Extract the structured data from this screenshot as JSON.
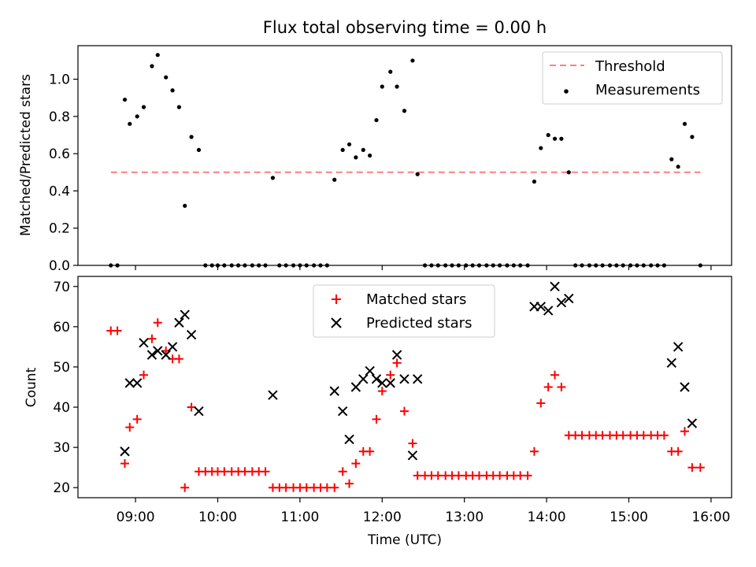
{
  "figure": {
    "title": "Flux total observing time = 0.00 h",
    "xlabel": "Time (UTC)",
    "x_tick_labels": [
      "09:00",
      "10:00",
      "11:00",
      "12:00",
      "13:00",
      "14:00",
      "15:00",
      "16:00"
    ]
  },
  "chart_data": [
    {
      "type": "scatter",
      "ylabel": "Matched/Predicted stars",
      "x_unit": "hours UTC",
      "xlim": [
        8.3,
        16.25
      ],
      "ylim": [
        0,
        1.18
      ],
      "y_ticks": [
        0.0,
        0.2,
        0.4,
        0.6,
        0.8,
        1.0
      ],
      "y_tick_labels": [
        "0.0",
        "0.2",
        "0.4",
        "0.6",
        "0.8",
        "1.0"
      ],
      "legend_position": "top-right",
      "threshold": {
        "name": "Threshold",
        "value": 0.5,
        "x_range": [
          8.7,
          15.87
        ],
        "color": "#ff7f7f"
      },
      "series": [
        {
          "name": "Measurements",
          "color": "#000000",
          "x": [
            8.7,
            8.78,
            8.87,
            8.93,
            9.02,
            9.1,
            9.2,
            9.27,
            9.37,
            9.45,
            9.53,
            9.6,
            9.68,
            9.77,
            9.85,
            9.93,
            10.0,
            10.08,
            10.17,
            10.25,
            10.33,
            10.42,
            10.5,
            10.58,
            10.67,
            10.75,
            10.83,
            10.92,
            11.0,
            11.08,
            11.17,
            11.25,
            11.33,
            11.42,
            11.52,
            11.6,
            11.68,
            11.77,
            11.85,
            11.93,
            12.0,
            12.1,
            12.18,
            12.27,
            12.37,
            12.43,
            12.52,
            12.6,
            12.68,
            12.77,
            12.85,
            12.93,
            13.02,
            13.1,
            13.18,
            13.27,
            13.35,
            13.43,
            13.52,
            13.6,
            13.68,
            13.77,
            13.85,
            13.93,
            14.02,
            14.1,
            14.18,
            14.27,
            14.35,
            14.43,
            14.52,
            14.6,
            14.68,
            14.77,
            14.85,
            14.93,
            15.02,
            15.1,
            15.18,
            15.27,
            15.35,
            15.43,
            15.52,
            15.6,
            15.68,
            15.77,
            15.87
          ],
          "y": [
            0,
            0,
            0.89,
            0.76,
            0.8,
            0.85,
            1.07,
            1.13,
            1.01,
            0.94,
            0.85,
            0.32,
            0.69,
            0.62,
            0,
            0,
            0,
            0,
            0,
            0,
            0,
            0,
            0,
            0,
            0.47,
            0,
            0,
            0,
            0,
            0,
            0,
            0,
            0,
            0.46,
            0.62,
            0.65,
            0.58,
            0.62,
            0.59,
            0.78,
            0.96,
            1.04,
            0.96,
            0.83,
            1.1,
            0.49,
            0,
            0,
            0,
            0,
            0,
            0,
            0,
            0,
            0,
            0,
            0,
            0,
            0,
            0,
            0,
            0,
            0.45,
            0.63,
            0.7,
            0.68,
            0.68,
            0.5,
            0,
            0,
            0,
            0,
            0,
            0,
            0,
            0,
            0,
            0,
            0,
            0,
            0,
            0,
            0.57,
            0.53,
            0.76,
            0.69,
            0
          ]
        }
      ]
    },
    {
      "type": "scatter",
      "ylabel": "Count",
      "x_unit": "hours UTC",
      "xlim": [
        8.3,
        16.25
      ],
      "ylim": [
        17.5,
        72.5
      ],
      "y_ticks": [
        20,
        30,
        40,
        50,
        60,
        70
      ],
      "y_tick_labels": [
        "20",
        "30",
        "40",
        "50",
        "60",
        "70"
      ],
      "legend_position": "top-center",
      "series": [
        {
          "name": "Matched stars",
          "marker": "+",
          "color": "#ff0000",
          "x": [
            8.7,
            8.78,
            8.87,
            8.93,
            9.02,
            9.1,
            9.2,
            9.27,
            9.37,
            9.45,
            9.53,
            9.6,
            9.68,
            9.77,
            9.85,
            9.93,
            10.0,
            10.08,
            10.17,
            10.25,
            10.33,
            10.42,
            10.5,
            10.58,
            10.67,
            10.75,
            10.83,
            10.92,
            11.0,
            11.08,
            11.17,
            11.25,
            11.33,
            11.42,
            11.52,
            11.6,
            11.68,
            11.77,
            11.85,
            11.93,
            12.0,
            12.1,
            12.18,
            12.27,
            12.37,
            12.43,
            12.52,
            12.6,
            12.68,
            12.77,
            12.85,
            12.93,
            13.02,
            13.1,
            13.18,
            13.27,
            13.35,
            13.43,
            13.52,
            13.6,
            13.68,
            13.77,
            13.85,
            13.93,
            14.02,
            14.1,
            14.18,
            14.27,
            14.35,
            14.43,
            14.52,
            14.6,
            14.68,
            14.77,
            14.85,
            14.93,
            15.02,
            15.1,
            15.18,
            15.27,
            15.35,
            15.43,
            15.52,
            15.6,
            15.68,
            15.77,
            15.87
          ],
          "y": [
            59,
            59,
            26,
            35,
            37,
            48,
            57,
            61,
            54,
            52,
            52,
            20,
            40,
            24,
            24,
            24,
            24,
            24,
            24,
            24,
            24,
            24,
            24,
            24,
            20,
            20,
            20,
            20,
            20,
            20,
            20,
            20,
            20,
            20,
            24,
            21,
            26,
            29,
            29,
            37,
            44,
            48,
            51,
            39,
            31,
            23,
            23,
            23,
            23,
            23,
            23,
            23,
            23,
            23,
            23,
            23,
            23,
            23,
            23,
            23,
            23,
            23,
            29,
            41,
            45,
            48,
            45,
            33,
            33,
            33,
            33,
            33,
            33,
            33,
            33,
            33,
            33,
            33,
            33,
            33,
            33,
            33,
            29,
            29,
            34,
            25,
            25
          ]
        },
        {
          "name": "Predicted stars",
          "marker": "x",
          "color": "#000000",
          "x": [
            8.87,
            8.93,
            9.02,
            9.1,
            9.2,
            9.27,
            9.37,
            9.45,
            9.53,
            9.6,
            9.68,
            9.77,
            10.67,
            11.42,
            11.52,
            11.6,
            11.68,
            11.77,
            11.85,
            11.93,
            12.0,
            12.1,
            12.18,
            12.27,
            12.37,
            12.43,
            13.85,
            13.93,
            14.02,
            14.1,
            14.18,
            14.27,
            15.52,
            15.6,
            15.68,
            15.77
          ],
          "y": [
            29,
            46,
            46,
            56,
            53,
            54,
            53,
            55,
            61,
            63,
            58,
            39,
            43,
            44,
            39,
            32,
            45,
            47,
            49,
            47,
            46,
            46,
            53,
            47,
            28,
            47,
            65,
            65,
            64,
            70,
            66,
            67,
            51,
            55,
            45,
            36
          ]
        }
      ]
    }
  ]
}
